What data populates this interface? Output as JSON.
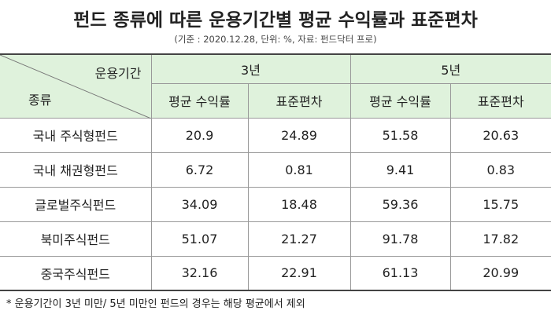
{
  "header": {
    "title": "펀드 종류에 따른 운용기간별 평균 수익률과 표준편차",
    "subtitle": "(기준 : 2020.12.28, 단위: %, 자료: 펀드닥터 프로)"
  },
  "table": {
    "corner_top": "운용기간",
    "corner_bottom": "종류",
    "periods": [
      "3년",
      "5년"
    ],
    "metrics": [
      "평균 수익률",
      "표준편차",
      "평균 수익률",
      "표준편차"
    ],
    "rows": [
      [
        "국내 주식형펀드",
        "20.9",
        "24.89",
        "51.58",
        "20.63"
      ],
      [
        "국내 채권형펀드",
        "6.72",
        "0.81",
        "9.41",
        "0.83"
      ],
      [
        "글로벌주식펀드",
        "34.09",
        "18.48",
        "59.36",
        "15.75"
      ],
      [
        "북미주식펀드",
        "51.07",
        "21.27",
        "91.78",
        "17.82"
      ],
      [
        "중국주식펀드",
        "32.16",
        "22.91",
        "61.13",
        "20.99"
      ]
    ]
  },
  "footnote": "* 운용기간이 3년 미만/ 5년 미만인 펀드의 경우는 해당 평균에서 제외"
}
